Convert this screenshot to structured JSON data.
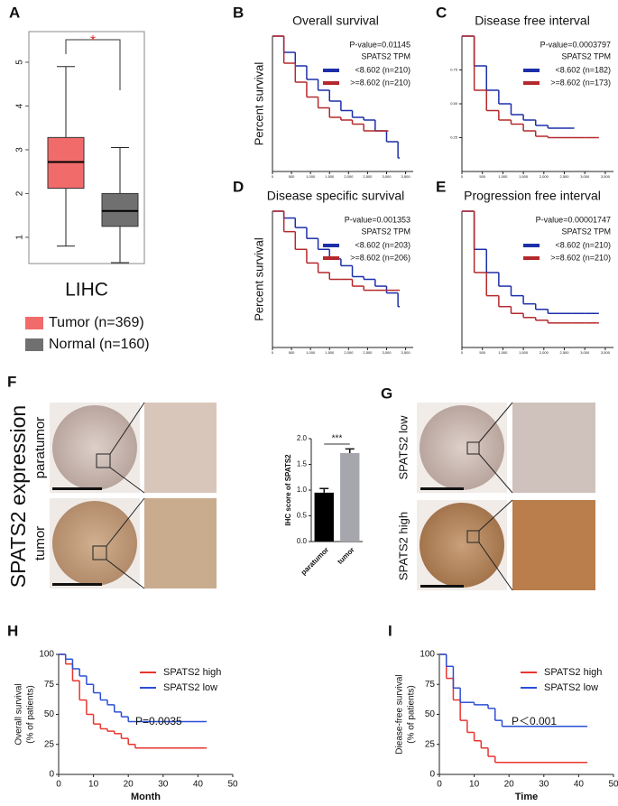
{
  "chart_data": [
    {
      "type": "box",
      "panel": "A",
      "categories": [
        "LIHC"
      ],
      "annotations": [
        "*"
      ],
      "series": [
        {
          "name": "Tumor (n=369)",
          "color": "#f26b6b",
          "min": 0.8,
          "q1": 2.12,
          "median": 2.72,
          "q3": 3.28,
          "max": 4.9
        },
        {
          "name": "Normal (n=160)",
          "color": "#707070",
          "min": 0.42,
          "q1": 1.25,
          "median": 1.6,
          "q3": 2.0,
          "max": 3.05
        }
      ],
      "ylim": [
        0.4,
        5.7
      ],
      "yticks": [
        1,
        2,
        3,
        4,
        5
      ]
    },
    {
      "type": "km",
      "panel": "B",
      "title": "Overall survival",
      "ylabel": [
        "Percent survival"
      ],
      "annotations": [
        "P-value=0.01145",
        "SPATS2 TPM"
      ],
      "series": [
        {
          "name": "<8.602 (n=210)",
          "color": "#1c2fa8",
          "x": [
            0,
            300,
            600,
            900,
            1200,
            1500,
            1800,
            2100,
            2400,
            2700,
            3000,
            3300
          ],
          "values": [
            1,
            0.88,
            0.78,
            0.68,
            0.6,
            0.52,
            0.45,
            0.4,
            0.38,
            0.3,
            0.22,
            0.1
          ]
        },
        {
          "name": ">=8.602 (n=210)",
          "color": "#b5282b",
          "x": [
            0,
            300,
            600,
            900,
            1200,
            1500,
            1800,
            2100,
            2400,
            2700,
            3000
          ],
          "values": [
            1,
            0.8,
            0.66,
            0.55,
            0.47,
            0.4,
            0.38,
            0.35,
            0.3,
            0.3,
            0.3
          ]
        }
      ],
      "xlim": [
        0,
        3700
      ],
      "ylim": [
        0,
        1
      ],
      "xticks": [
        0,
        500,
        {
          "value": 1000,
          "label": "1,000"
        },
        {
          "value": 1500,
          "label": "1,500"
        },
        {
          "value": 2000,
          "label": "2,000"
        },
        {
          "value": 2500,
          "label": "2,500"
        },
        {
          "value": 3000,
          "label": "3,000"
        },
        {
          "value": 3500,
          "label": "3,500"
        }
      ]
    },
    {
      "type": "km",
      "panel": "C",
      "title": "Disease free interval",
      "ylabel": [],
      "annotations": [
        "P-value=0.0003797",
        "SPATS2 TPM"
      ],
      "series": [
        {
          "name": "<8.602 (n=182)",
          "color": "#1c2fa8",
          "x": [
            0,
            300,
            600,
            900,
            1200,
            1500,
            1800,
            2100,
            2400,
            2700
          ],
          "values": [
            1,
            0.78,
            0.6,
            0.5,
            0.42,
            0.38,
            0.34,
            0.32,
            0.32,
            0.32
          ]
        },
        {
          "name": ">=8.602 (n=173)",
          "color": "#b5282b",
          "x": [
            0,
            300,
            600,
            900,
            1200,
            1500,
            1800,
            2100,
            2400,
            2700,
            3000,
            3300
          ],
          "values": [
            1,
            0.6,
            0.45,
            0.38,
            0.35,
            0.3,
            0.26,
            0.25,
            0.25,
            0.25,
            0.25,
            0.25
          ]
        }
      ],
      "xlim": [
        0,
        3700
      ],
      "ylim": [
        0,
        1
      ],
      "xticks": [
        0,
        500,
        {
          "value": 1000,
          "label": "1,000"
        },
        {
          "value": 1500,
          "label": "1,500"
        },
        {
          "value": 2000,
          "label": "2,000"
        },
        {
          "value": 2500,
          "label": "2,500"
        },
        {
          "value": 3000,
          "label": "3,000"
        },
        {
          "value": 3500,
          "label": "3,500"
        }
      ],
      "yticks": [
        {
          "value": 0.25,
          "label": "0.25"
        },
        {
          "value": 0.5,
          "label": "0.50"
        },
        {
          "value": 0.75,
          "label": "0.75"
        }
      ]
    },
    {
      "type": "km",
      "panel": "D",
      "title": "Disease specific survival",
      "ylabel": [
        "Percent survival"
      ],
      "annotations": [
        "P-value=0.001353",
        "SPATS2 TPM"
      ],
      "series": [
        {
          "name": "<8.602 (n=203)",
          "color": "#1c2fa8",
          "x": [
            0,
            300,
            600,
            900,
            1200,
            1500,
            1800,
            2100,
            2400,
            2700,
            3000,
            3300
          ],
          "values": [
            1,
            0.95,
            0.88,
            0.8,
            0.72,
            0.65,
            0.6,
            0.52,
            0.5,
            0.45,
            0.4,
            0.3
          ]
        },
        {
          "name": ">=8.602 (n=206)",
          "color": "#b5282b",
          "x": [
            0,
            300,
            600,
            900,
            1200,
            1500,
            1800,
            2100,
            2400,
            2700,
            3000,
            3300
          ],
          "values": [
            1,
            0.85,
            0.72,
            0.62,
            0.55,
            0.5,
            0.5,
            0.45,
            0.42,
            0.42,
            0.42,
            0.42
          ]
        }
      ],
      "xlim": [
        0,
        3700
      ],
      "ylim": [
        0,
        1
      ],
      "xticks": [
        0,
        500,
        {
          "value": 1000,
          "label": "1,000"
        },
        {
          "value": 1500,
          "label": "1,500"
        },
        {
          "value": 2000,
          "label": "2,000"
        },
        {
          "value": 2500,
          "label": "2,500"
        },
        {
          "value": 3000,
          "label": "3,000"
        },
        {
          "value": 3500,
          "label": "3,500"
        }
      ]
    },
    {
      "type": "km",
      "panel": "E",
      "title": "Progression free interval",
      "ylabel": [],
      "annotations": [
        "P-value=0.00001747",
        "SPATS2 TPM"
      ],
      "series": [
        {
          "name": "<8.602 (n=210)",
          "color": "#1c2fa8",
          "x": [
            0,
            300,
            600,
            900,
            1200,
            1500,
            1800,
            2100,
            2400,
            2700,
            3000,
            3300
          ],
          "values": [
            1,
            0.72,
            0.55,
            0.45,
            0.38,
            0.32,
            0.28,
            0.25,
            0.25,
            0.25,
            0.25,
            0.25
          ]
        },
        {
          "name": ">=8.602 (n=210)",
          "color": "#b5282b",
          "x": [
            0,
            300,
            600,
            900,
            1200,
            1500,
            1800,
            2100,
            2400,
            2700,
            3000,
            3300
          ],
          "values": [
            1,
            0.55,
            0.38,
            0.3,
            0.25,
            0.22,
            0.2,
            0.18,
            0.18,
            0.18,
            0.18,
            0.18
          ]
        }
      ],
      "xlim": [
        0,
        3700
      ],
      "ylim": [
        0,
        1
      ],
      "xticks": [
        0,
        500,
        {
          "value": 1000,
          "label": "1,000"
        },
        {
          "value": 1500,
          "label": "1,500"
        },
        {
          "value": 2000,
          "label": "2,000"
        },
        {
          "value": 2500,
          "label": "2,500"
        },
        {
          "value": 3000,
          "label": "3,000"
        },
        {
          "value": 3500,
          "label": "3,500"
        }
      ]
    },
    {
      "type": "bar",
      "panel": "F",
      "ylabel": [
        "IHC score of SPATS2"
      ],
      "annotations": [
        "***"
      ],
      "categories": [
        "paratumor",
        "tumor"
      ],
      "values": [
        0.95,
        1.72
      ],
      "errors": [
        0.08,
        0.08
      ],
      "colors": [
        "#000000",
        "#a6a6ad"
      ],
      "ylim": [
        0,
        2
      ],
      "yticks": [
        {
          "value": 0,
          "label": "0.0"
        },
        {
          "value": 0.5,
          "label": "0.5"
        },
        {
          "value": 1,
          "label": "1.0"
        },
        {
          "value": 1.5,
          "label": "1.5"
        },
        {
          "value": 2,
          "label": "2.0"
        }
      ]
    },
    {
      "type": "km",
      "panel": "H",
      "xlabel": "Month",
      "ylabel": [
        "Overall survival",
        "(% of patients)"
      ],
      "annotations": [
        "P=0.0035"
      ],
      "series": [
        {
          "name": "SPATS2 high",
          "color": "#e8352f",
          "x": [
            0,
            2,
            4,
            6,
            8,
            10,
            12,
            14,
            16,
            18,
            20,
            22,
            42
          ],
          "values": [
            100,
            92,
            78,
            62,
            50,
            42,
            38,
            36,
            34,
            30,
            25,
            22,
            22
          ]
        },
        {
          "name": "SPATS2 low",
          "color": "#2b4fd6",
          "x": [
            0,
            2,
            4,
            6,
            8,
            10,
            12,
            14,
            16,
            18,
            20,
            42
          ],
          "values": [
            100,
            96,
            88,
            82,
            75,
            68,
            62,
            58,
            52,
            48,
            44,
            44
          ]
        }
      ],
      "xlim": [
        0,
        50
      ],
      "ylim": [
        0,
        100
      ],
      "xticks": [
        0,
        10,
        20,
        30,
        40,
        50
      ],
      "yticks": [
        0,
        25,
        50,
        75,
        100
      ]
    },
    {
      "type": "km",
      "panel": "I",
      "xlabel": "Time",
      "ylabel": [
        "Diease-free survival",
        "(% of patients)"
      ],
      "annotations": [
        "P＜0.001"
      ],
      "series": [
        {
          "name": "SPATS2 high",
          "color": "#e8352f",
          "x": [
            0,
            2,
            4,
            6,
            8,
            10,
            12,
            14,
            16,
            18,
            42
          ],
          "values": [
            100,
            80,
            62,
            45,
            35,
            28,
            22,
            15,
            10,
            10,
            10
          ]
        },
        {
          "name": "SPATS2 low",
          "color": "#2b4fd6",
          "x": [
            0,
            2,
            4,
            6,
            10,
            14,
            16,
            18,
            42
          ],
          "values": [
            100,
            90,
            72,
            60,
            58,
            55,
            45,
            40,
            40
          ]
        }
      ],
      "xlim": [
        0,
        50
      ],
      "ylim": [
        0,
        100
      ],
      "xticks": [
        0,
        10,
        20,
        30,
        40,
        50
      ],
      "yticks": [
        0,
        25,
        50,
        75,
        100
      ]
    }
  ],
  "figure": {
    "panel_F": {
      "side_label": "SPATS2 expression",
      "rows": [
        "paratumor",
        "tumor"
      ]
    },
    "panel_G": {
      "letter": "G",
      "rows": [
        "SPATS2 low",
        "SPATS2 high"
      ]
    }
  }
}
